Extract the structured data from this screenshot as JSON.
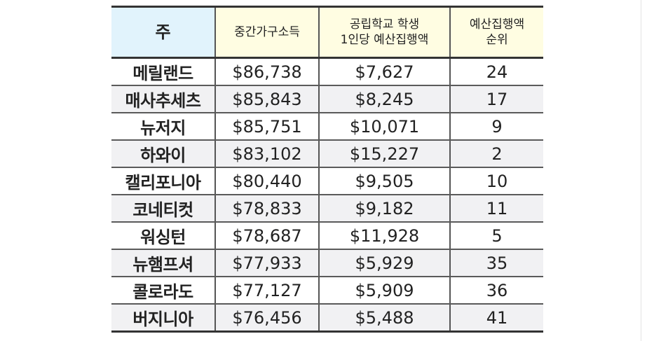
{
  "table": {
    "headers": {
      "state": "주",
      "median_income": "중간가구소득",
      "spending_per_student_line1": "공립학교 학생",
      "spending_per_student_line2": "1인당 예산집행액",
      "spending_rank_line1": "예산집행액",
      "spending_rank_line2": "순위"
    },
    "colors": {
      "state_header_bg": "#e1f3fc",
      "other_header_bg": "#fffde2",
      "alt_row_bg": "#f1f1f3",
      "border": "#333333"
    },
    "rows": [
      {
        "state": "메릴랜드",
        "median_income": "$86,738",
        "spending_per_student": "$7,627",
        "rank": "24"
      },
      {
        "state": "매사추세츠",
        "median_income": "$85,843",
        "spending_per_student": "$8,245",
        "rank": "17"
      },
      {
        "state": "뉴저지",
        "median_income": "$85,751",
        "spending_per_student": "$10,071",
        "rank": "9"
      },
      {
        "state": "하와이",
        "median_income": "$83,102",
        "spending_per_student": "$15,227",
        "rank": "2"
      },
      {
        "state": "캘리포니아",
        "median_income": "$80,440",
        "spending_per_student": "$9,505",
        "rank": "10"
      },
      {
        "state": "코네티컷",
        "median_income": "$78,833",
        "spending_per_student": "$9,182",
        "rank": "11"
      },
      {
        "state": "워싱턴",
        "median_income": "$78,687",
        "spending_per_student": "$11,928",
        "rank": "5"
      },
      {
        "state": "뉴햄프셔",
        "median_income": "$77,933",
        "spending_per_student": "$5,929",
        "rank": "35"
      },
      {
        "state": "콜로라도",
        "median_income": "$77,127",
        "spending_per_student": "$5,909",
        "rank": "36"
      },
      {
        "state": "버지니아",
        "median_income": "$76,456",
        "spending_per_student": "$5,488",
        "rank": "41"
      }
    ]
  }
}
